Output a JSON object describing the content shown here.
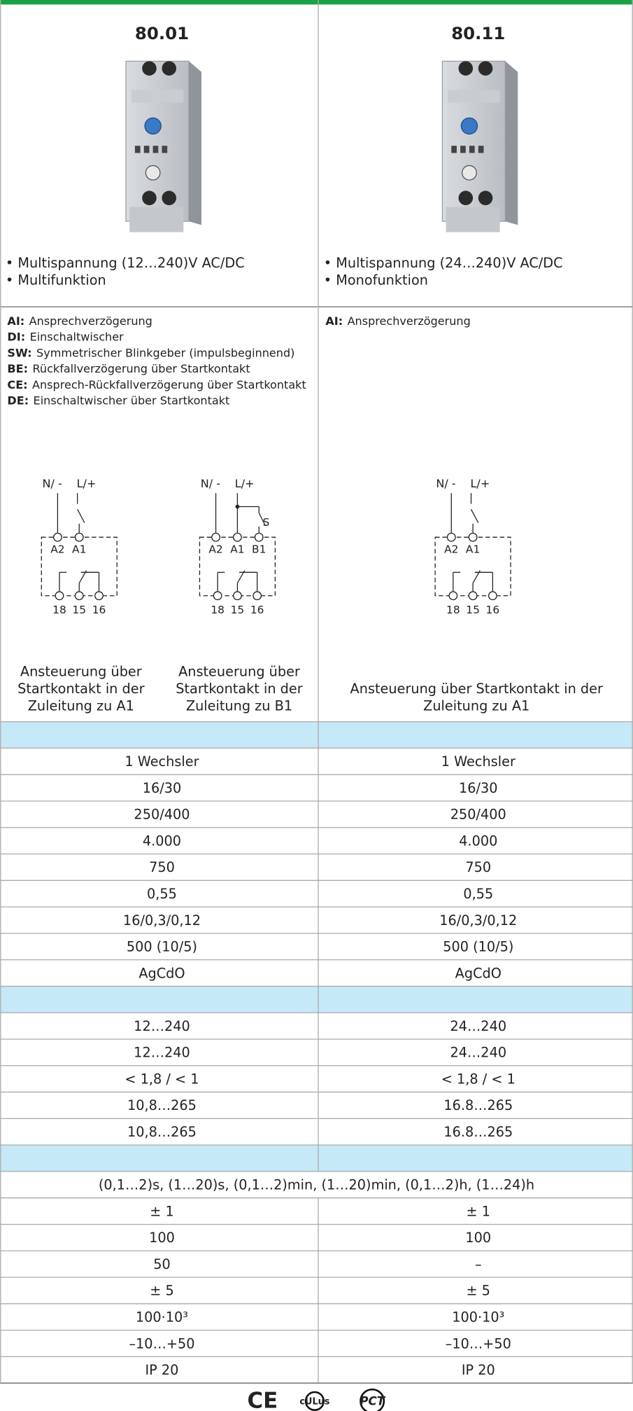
{
  "columns": [
    {
      "title": "80.01",
      "features": [
        "• Multispannung (12…240)V AC/DC",
        "• Multifunktion"
      ],
      "functions": [
        {
          "code": "AI:",
          "text": "Ansprechverzögerung"
        },
        {
          "code": "DI:",
          "text": "Einschaltwischer"
        },
        {
          "code": "SW:",
          "text": "Symmetrischer Blinkgeber (impulsbeginnend)"
        },
        {
          "code": "BE:",
          "text": "Rückfallverzögerung über Startkontakt"
        },
        {
          "code": "CE:",
          "text": "Ansprech-Rückfallverzögerung über Startkontakt"
        },
        {
          "code": "DE:",
          "text": "Einschaltwischer über Startkontakt"
        }
      ]
    },
    {
      "title": "80.11",
      "features": [
        "• Multispannung (24…240)V AC/DC",
        "• Monofunktion"
      ],
      "functions": [
        {
          "code": "AI:",
          "text": "Ansprechverzögerung"
        }
      ]
    }
  ],
  "diagrams": [
    {
      "supply": [
        "N/ -",
        "L/+"
      ],
      "terminals": [
        "A2",
        "A1"
      ],
      "contacts": [
        "18",
        "15",
        "16"
      ],
      "caption": [
        "Ansteuerung über",
        "Startkontakt in der",
        "Zuleitung zu A1"
      ]
    },
    {
      "supply": [
        "N/ -",
        "L/+"
      ],
      "switch": "S",
      "terminals": [
        "A2",
        "A1",
        "B1"
      ],
      "contacts": [
        "18",
        "15",
        "16"
      ],
      "caption": [
        "Ansteuerung über",
        "Startkontakt in der",
        "Zuleitung zu B1"
      ]
    },
    {
      "supply": [
        "N/ -",
        "L/+"
      ],
      "terminals": [
        "A2",
        "A1"
      ],
      "contacts": [
        "18",
        "15",
        "16"
      ],
      "caption": [
        "Ansteuerung über Startkontakt in der",
        "Zuleitung zu A1"
      ]
    }
  ],
  "table": {
    "sections": [
      {
        "rows": [
          [
            "1 Wechsler",
            "1 Wechsler"
          ],
          [
            "16/30",
            "16/30"
          ],
          [
            "250/400",
            "250/400"
          ],
          [
            "4.000",
            "4.000"
          ],
          [
            "750",
            "750"
          ],
          [
            "0,55",
            "0,55"
          ],
          [
            "16/0,3/0,12",
            "16/0,3/0,12"
          ],
          [
            "500 (10/5)",
            "500 (10/5)"
          ],
          [
            "AgCdO",
            "AgCdO"
          ]
        ]
      },
      {
        "rows": [
          [
            "12…240",
            "24…240"
          ],
          [
            "12…240",
            "24…240"
          ],
          [
            "< 1,8 / < 1",
            "< 1,8 / < 1"
          ],
          [
            "10,8…265",
            "16.8…265"
          ],
          [
            "10,8…265",
            "16.8…265"
          ]
        ]
      },
      {
        "rows": [
          [
            "(0,1…2)s, (1…20)s, (0,1…2)min, (1…20)min, (0,1…2)h, (1…24)h"
          ],
          [
            "± 1",
            "± 1"
          ],
          [
            "100",
            "100"
          ],
          [
            "50",
            "–"
          ],
          [
            "± 5",
            "± 5"
          ],
          [
            "100·10³",
            "100·10³"
          ],
          [
            "–10…+50",
            "–10…+50"
          ],
          [
            "IP 20",
            "IP 20"
          ]
        ]
      }
    ]
  },
  "certifications": [
    "CE",
    "cULus",
    "PCT"
  ]
}
